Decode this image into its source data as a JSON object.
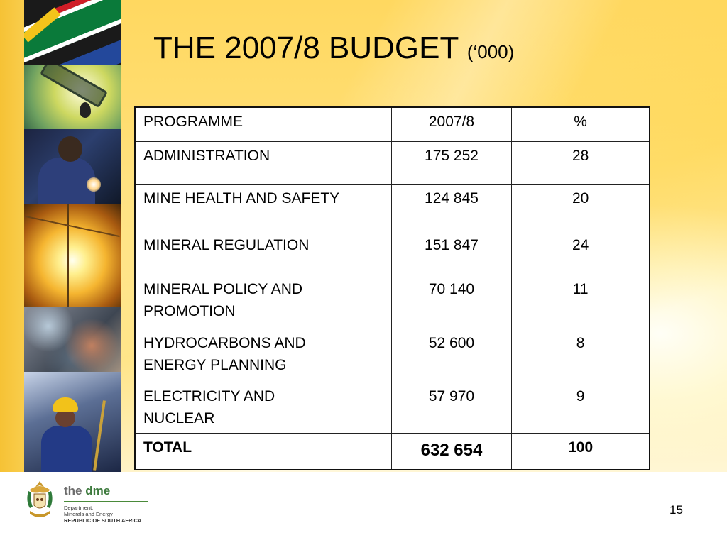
{
  "slide": {
    "title": "THE 2007/8 BUDGET",
    "title_unit": "(‘000)",
    "page_number": "15"
  },
  "table": {
    "headers": [
      "PROGRAMME",
      "2007/8",
      "%"
    ],
    "rows": [
      {
        "programme": "ADMINISTRATION",
        "amount": "175 252",
        "percent": "28"
      },
      {
        "programme": "MINE HEALTH AND SAFETY",
        "amount": "124 845",
        "percent": "20"
      },
      {
        "programme": "MINERAL REGULATION",
        "amount": "151 847",
        "percent": "24"
      },
      {
        "programme_lines": [
          "MINERAL POLICY AND",
          "PROMOTION"
        ],
        "amount": "70 140",
        "percent": "11"
      },
      {
        "programme_lines": [
          "HYDROCARBONS AND",
          "ENERGY PLANNING"
        ],
        "amount": "52 600",
        "percent": "8"
      },
      {
        "programme_lines": [
          "ELECTRICITY AND",
          "NUCLEAR"
        ],
        "amount": "57 970",
        "percent": "9"
      }
    ],
    "total": {
      "label": "TOTAL",
      "amount": "632 654",
      "percent": "100"
    }
  },
  "logo": {
    "name_prefix": "the ",
    "name_main": "dme",
    "line1": "Department:",
    "line2": "Minerals and Energy",
    "line3": "REPUBLIC OF SOUTH AFRICA"
  },
  "colors": {
    "background_gold": "#ffdd70",
    "logo_green": "#3d7a3d",
    "logo_grey": "#6b6b6b"
  },
  "icons": [
    "national-coat-of-arms"
  ]
}
